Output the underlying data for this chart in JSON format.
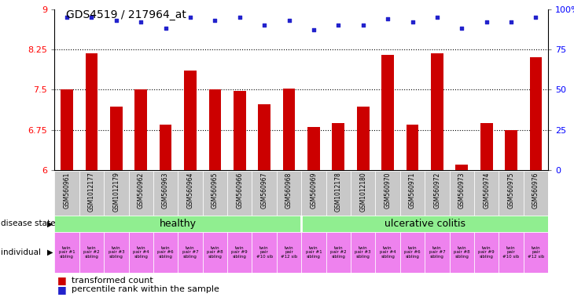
{
  "title": "GDS4519 / 217964_at",
  "samples": [
    "GSM560961",
    "GSM1012177",
    "GSM1012179",
    "GSM560962",
    "GSM560963",
    "GSM560964",
    "GSM560965",
    "GSM560966",
    "GSM560967",
    "GSM560968",
    "GSM560969",
    "GSM1012178",
    "GSM1012180",
    "GSM560970",
    "GSM560971",
    "GSM560972",
    "GSM560973",
    "GSM560974",
    "GSM560975",
    "GSM560976"
  ],
  "bar_values": [
    7.5,
    8.18,
    7.18,
    7.5,
    6.85,
    7.85,
    7.5,
    7.48,
    7.22,
    7.52,
    6.8,
    6.87,
    7.18,
    8.15,
    6.85,
    8.18,
    6.1,
    6.87,
    6.75,
    8.1
  ],
  "percentile_values": [
    95,
    95,
    93,
    92,
    88,
    95,
    93,
    95,
    90,
    93,
    87,
    90,
    90,
    94,
    92,
    95,
    88,
    92,
    92,
    95
  ],
  "ylim_left": [
    6,
    9
  ],
  "ylim_right": [
    0,
    100
  ],
  "yticks_left": [
    6,
    6.75,
    7.5,
    8.25,
    9
  ],
  "yticks_right": [
    0,
    25,
    50,
    75,
    100
  ],
  "bar_color": "#cc0000",
  "dot_color": "#2222cc",
  "healthy_label": "healthy",
  "uc_label": "ulcerative colitis",
  "n_healthy": 10,
  "n_uc": 10,
  "individual_labels_healthy": [
    "twin\npair #1\nsibling",
    "twin\npair #2\nsibling",
    "twin\npair #3\nsibling",
    "twin\npair #4\nsibling",
    "twin\npair #6\nsibling",
    "twin\npair #7\nsibling",
    "twin\npair #8\nsibling",
    "twin\npair #9\nsibling",
    "twin\npair\n#10 sib",
    "twin\npair\n#12 sib"
  ],
  "individual_labels_uc": [
    "twin\npair #1\nsibling",
    "twin\npair #2\nsibling",
    "twin\npair #3\nsibling",
    "twin\npair #4\nsibling",
    "twin\npair #6\nsibling",
    "twin\npair #7\nsibling",
    "twin\npair #8\nsibling",
    "twin\npair #9\nsibling",
    "twin\npair\n#10 sib",
    "twin\npair\n#12 sib"
  ],
  "legend_bar_label": "transformed count",
  "legend_dot_label": "percentile rank within the sample",
  "disease_state_label": "disease state",
  "individual_label": "individual",
  "pink_color": "#ee82ee",
  "green_color": "#90ee90",
  "gray_color": "#c8c8c8",
  "dot_gridline": [
    6.75,
    7.5,
    8.25
  ]
}
